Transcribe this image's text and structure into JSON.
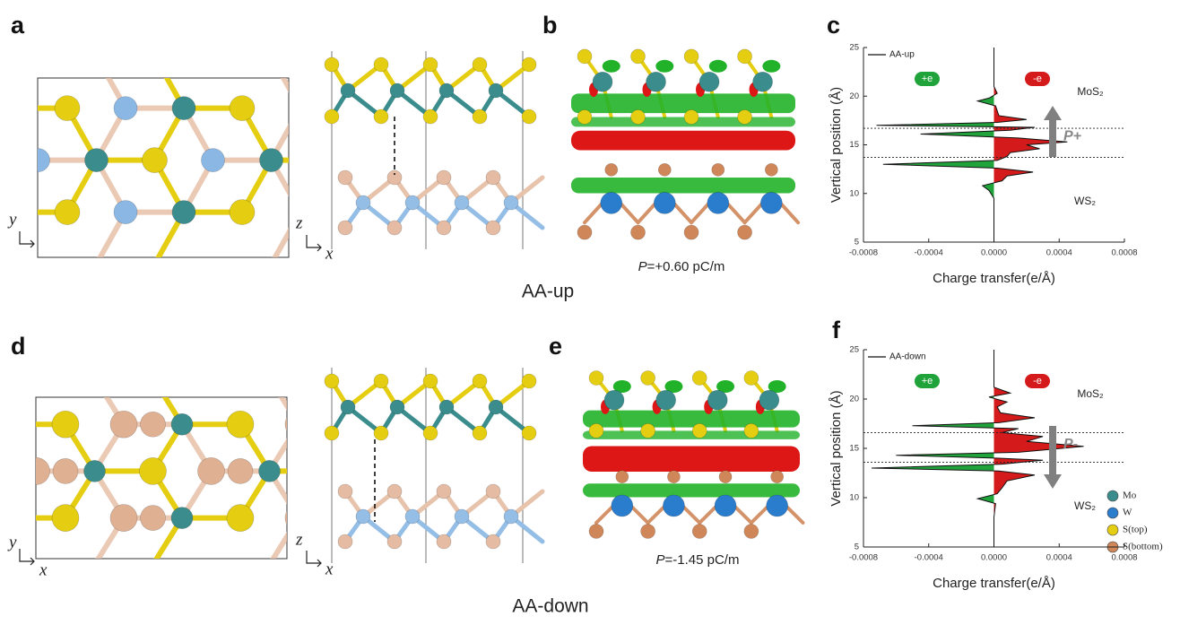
{
  "panel_labels": [
    "a",
    "b",
    "c",
    "d",
    "e",
    "f"
  ],
  "coordinate_labels": {
    "x": "x",
    "y": "y",
    "z": "z"
  },
  "structures": [
    {
      "name": "AA-up",
      "polarization": {
        "symbol": "P",
        "text": "=+0.60 pC/m"
      }
    },
    {
      "name": "AA-down",
      "polarization": {
        "symbol": "P",
        "text": "=-1.45 pC/m"
      }
    }
  ],
  "atom_legend": [
    {
      "name": "Mo",
      "color": "#3b8d8d"
    },
    {
      "name": "W",
      "color": "#2a7ccc"
    },
    {
      "name": "S(top)",
      "color": "#e5ce12"
    },
    {
      "name": "S(bottom)",
      "color": "#cf8658"
    }
  ],
  "chart_data": [
    {
      "type": "line",
      "legend": "AA-up",
      "xlabel": "Charge transfer(e/Å)",
      "ylabel": "Vertical position (Å)",
      "xlim": [
        -0.0008,
        0.0008
      ],
      "xticks": [
        -0.0008,
        -0.0004,
        {
          "value": 0,
          "label": "0.0000"
        },
        0.0004,
        0.0008
      ],
      "ylim": [
        5,
        25
      ],
      "yticks": [
        5,
        10,
        15,
        20,
        25
      ],
      "fill_negative": "#20a33a",
      "fill_positive": "#d41a1a",
      "interfaces": [
        13.7,
        16.7
      ],
      "labels": {
        "gain": "+e",
        "loss": "-e",
        "top_layer": "MoS₂",
        "bottom_layer": "WS₂",
        "polarization": "P+"
      },
      "y": [
        5,
        8,
        9.5,
        10.3,
        10.8,
        11.3,
        11.8,
        12.2,
        12.6,
        13.0,
        13.4,
        13.8,
        14.2,
        14.6,
        15.0,
        15.3,
        15.7,
        16.1,
        16.5,
        16.8,
        17.0,
        17.3,
        17.6,
        18,
        19,
        19.5,
        19.8,
        20.3,
        21,
        22,
        23,
        24,
        25
      ],
      "values": [
        0,
        0,
        0,
        -3e-05,
        -7e-05,
        5e-05,
        8e-05,
        0.00024,
        2e-05,
        -0.00068,
        2e-05,
        8e-05,
        0.0001,
        0.00028,
        0.0002,
        0.00045,
        0.00015,
        -0.00045,
        0.0001,
        0.00025,
        -0.00072,
        2e-05,
        0.0002,
        3e-05,
        1e-05,
        -0.0001,
        -3e-05,
        2e-05,
        0,
        0,
        0,
        0,
        0
      ]
    },
    {
      "type": "line",
      "legend": "AA-down",
      "xlabel": "Charge transfer(e/Å)",
      "ylabel": "Vertical position (Å)",
      "xlim": [
        -0.0008,
        0.0008
      ],
      "xticks": [
        -0.0008,
        -0.0004,
        {
          "value": 0,
          "label": "0.0000"
        },
        0.0004,
        0.0008
      ],
      "ylim": [
        5,
        25
      ],
      "yticks": [
        5,
        10,
        15,
        20,
        25
      ],
      "fill_negative": "#20a33a",
      "fill_positive": "#d41a1a",
      "interfaces": [
        13.6,
        16.6
      ],
      "labels": {
        "gain": "+e",
        "loss": "-e",
        "top_layer": "MoS₂",
        "bottom_layer": "WS₂",
        "polarization": "P-"
      },
      "y": [
        5,
        8,
        9.4,
        9.9,
        10.4,
        11,
        11.7,
        12.3,
        12.7,
        13.0,
        13.4,
        13.8,
        14.0,
        14.3,
        14.6,
        15.2,
        15.7,
        16.2,
        16.6,
        17.0,
        17.3,
        17.6,
        18.1,
        18.6,
        19.2,
        19.7,
        20.2,
        20.6,
        21.2,
        22,
        25
      ],
      "values": [
        0,
        0,
        1e-05,
        -0.0001,
        2e-05,
        5e-05,
        8e-05,
        0.00025,
        3e-05,
        -0.00075,
        5e-05,
        0.0003,
        3e-05,
        -0.0006,
        0.00015,
        0.00055,
        0.0002,
        0.0003,
        5e-05,
        0.00015,
        -0.0005,
        3e-05,
        0.00025,
        4e-05,
        2e-05,
        8e-05,
        -3e-05,
        0.0001,
        0,
        0,
        0
      ]
    }
  ]
}
